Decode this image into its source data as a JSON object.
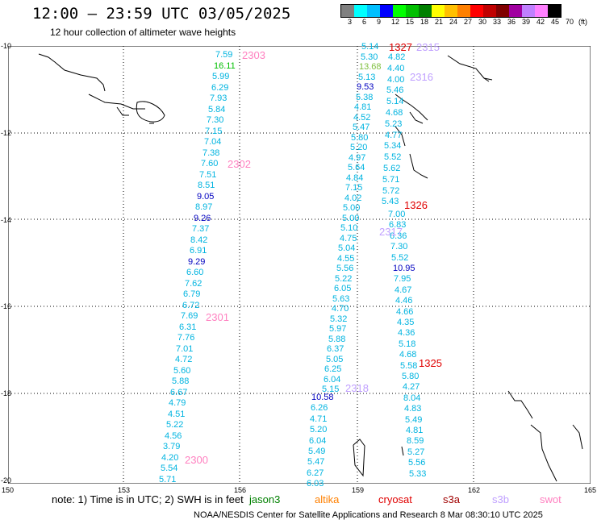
{
  "title": "12:00 – 23:59 UTC 03/05/2025",
  "subtitle": "12 hour collection of altimeter wave heights",
  "colorbar": {
    "colors": [
      "#808080",
      "#00ffff",
      "#00bfff",
      "#0000ff",
      "#00ff00",
      "#00bf00",
      "#008000",
      "#ffff00",
      "#ffc000",
      "#ff8000",
      "#ff0000",
      "#c00000",
      "#800000",
      "#a000a0",
      "#c080ff",
      "#ff80ff",
      "#000000"
    ],
    "labels": [
      "3",
      "6",
      "9",
      "12",
      "15",
      "18",
      "21",
      "24",
      "27",
      "30",
      "33",
      "36",
      "39",
      "42",
      "45",
      "70",
      "(ft)"
    ]
  },
  "axes": {
    "lat_labels": [
      "-10",
      "-12",
      "-14",
      "-16",
      "-18",
      "-20"
    ],
    "lon_labels": [
      "150",
      "153",
      "156",
      "159",
      "162",
      "165"
    ]
  },
  "tracks": [
    {
      "id": "2303",
      "color": "#ff80c0",
      "values": [
        "7.59",
        "16.11",
        "5.99",
        "6.29",
        "7.93",
        "5.84",
        "7.30",
        "7.15",
        "7.04",
        "7.38",
        "7.60",
        "7.51",
        "8.51",
        "9.05",
        "8.97",
        "9.26",
        "7.37",
        "8.42",
        "6.91",
        "9.29",
        "6.60",
        "7.62",
        "6.79",
        "6.72",
        "7.69",
        "6.31",
        "7.76",
        "7.01",
        "4.72",
        "5.60",
        "5.88",
        "6.67",
        "4.79",
        "4.51",
        "5.22",
        "4.56",
        "3.79",
        "4.20",
        "5.54",
        "5.71"
      ]
    },
    {
      "id": "2302",
      "color": "#ff80c0"
    },
    {
      "id": "2301",
      "color": "#ff80c0"
    },
    {
      "id": "2300",
      "color": "#ff80c0"
    },
    {
      "id": "2318",
      "color": "#c0a0ff",
      "values": [
        "10.58",
        "6.26",
        "4.71",
        "5.20",
        "6.04",
        "5.49",
        "5.47",
        "6.27",
        "6.03"
      ]
    },
    {
      "id": "2317",
      "color": "#c0a0ff"
    },
    {
      "id": "2316",
      "color": "#c0a0ff"
    },
    {
      "id": "2315",
      "color": "#c0a0ff"
    },
    {
      "id": "1327",
      "color": "#e00000"
    },
    {
      "id": "1326",
      "color": "#e00000"
    },
    {
      "id": "1325",
      "color": "#e00000",
      "values": [
        "7.00",
        "6.83",
        "6.36",
        "7.30",
        "5.52",
        "10.95",
        "7.95",
        "4.67",
        "4.46",
        "4.66",
        "4.35",
        "4.36",
        "5.18",
        "4.68",
        "5.58",
        "5.80",
        "4.27",
        "8.04",
        "4.83",
        "5.49",
        "4.81",
        "8.59",
        "5.27",
        "5.56",
        "5.33"
      ]
    }
  ],
  "middle_track": [
    "5.14",
    "5.30",
    "13.68",
    "5.13",
    "9.53",
    "5.38",
    "4.81",
    "4.52",
    "5.47",
    "5.80",
    "5.20",
    "4.97",
    "5.64",
    "4.84",
    "7.15",
    "4.02",
    "5.00",
    "5.00",
    "5.10",
    "4.75",
    "5.04",
    "4.55",
    "5.56",
    "5.22",
    "6.05",
    "5.63",
    "4.70",
    "5.32",
    "5.97",
    "5.88",
    "6.37",
    "5.05",
    "6.25",
    "6.04",
    "5.15"
  ],
  "right_top_track": [
    "4.82",
    "4.40",
    "4.00",
    "5.46",
    "5.14",
    "4.68",
    "5.23",
    "4.77",
    "5.34",
    "5.52",
    "5.62",
    "5.71",
    "5.72",
    "5.43"
  ],
  "note": "note:  1) Time is in UTC; 2) SWH is in feet",
  "satellites": [
    {
      "name": "jason3",
      "color": "#008000"
    },
    {
      "name": "altika",
      "color": "#ff8000"
    },
    {
      "name": "cryosat",
      "color": "#e00000"
    },
    {
      "name": "s3a",
      "color": "#a00000"
    },
    {
      "name": "s3b",
      "color": "#c0a0ff"
    },
    {
      "name": "swot",
      "color": "#ff80c0"
    }
  ],
  "footer": "NOAA/NESDIS Center for Satellite Applications and Research    8 Mar 08:30:10 UTC 2025"
}
